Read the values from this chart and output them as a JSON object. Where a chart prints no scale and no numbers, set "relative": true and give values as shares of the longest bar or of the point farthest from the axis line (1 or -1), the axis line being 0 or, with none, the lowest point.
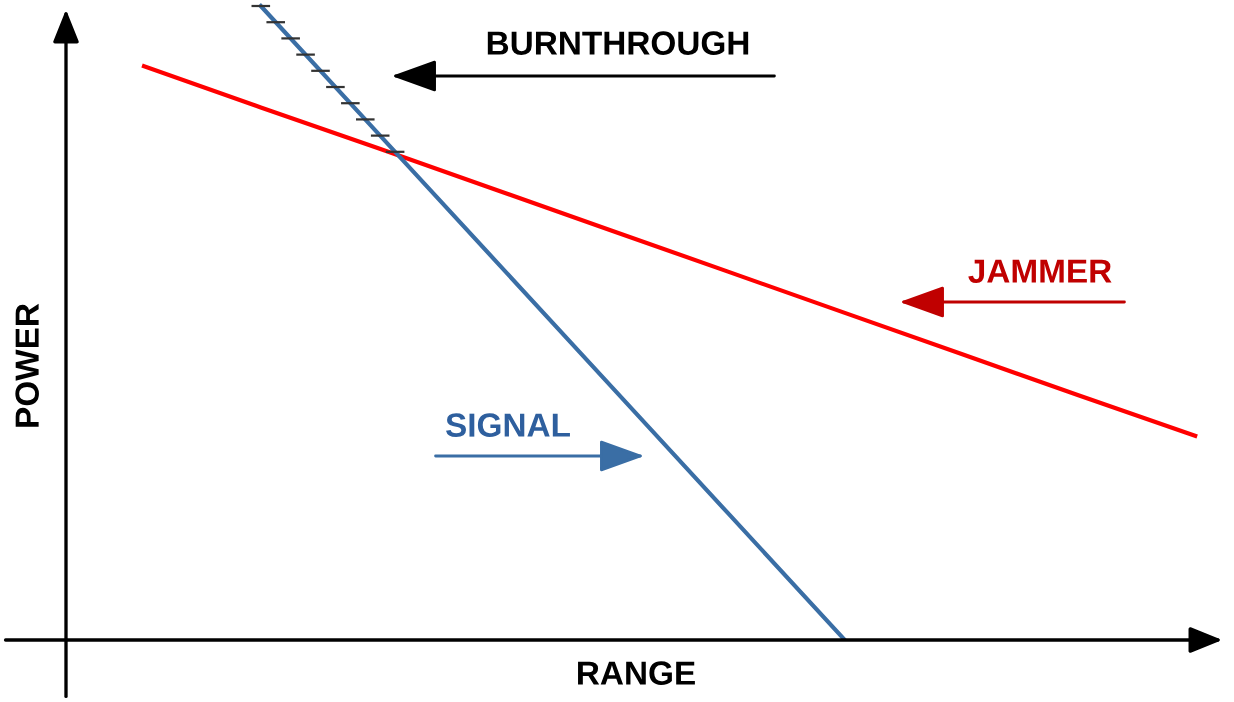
{
  "chart_data": {
    "type": "line",
    "relative": true,
    "xlabel": "RANGE",
    "ylabel": "POWER",
    "categories": [
      null,
      null,
      null,
      null,
      null,
      null,
      null,
      null,
      null,
      null
    ],
    "series": [
      {
        "color": "#ff0000",
        "values": [
          0.905,
          0.84,
          0.776,
          0.711,
          0.646,
          0.581,
          0.516,
          0.451,
          0.386,
          0.322
        ]
      },
      {
        "color": "#3a6ea5",
        "values": [
          null,
          1.0,
          0.8,
          0.6,
          0.4,
          0.2,
          0.0,
          null,
          null,
          null
        ]
      }
    ],
    "annotations": [
      "BURNTHROUGH",
      "JAMMER",
      "SIGNAL"
    ],
    "grid": false,
    "marker": "none",
    "line_style": "solid"
  }
}
